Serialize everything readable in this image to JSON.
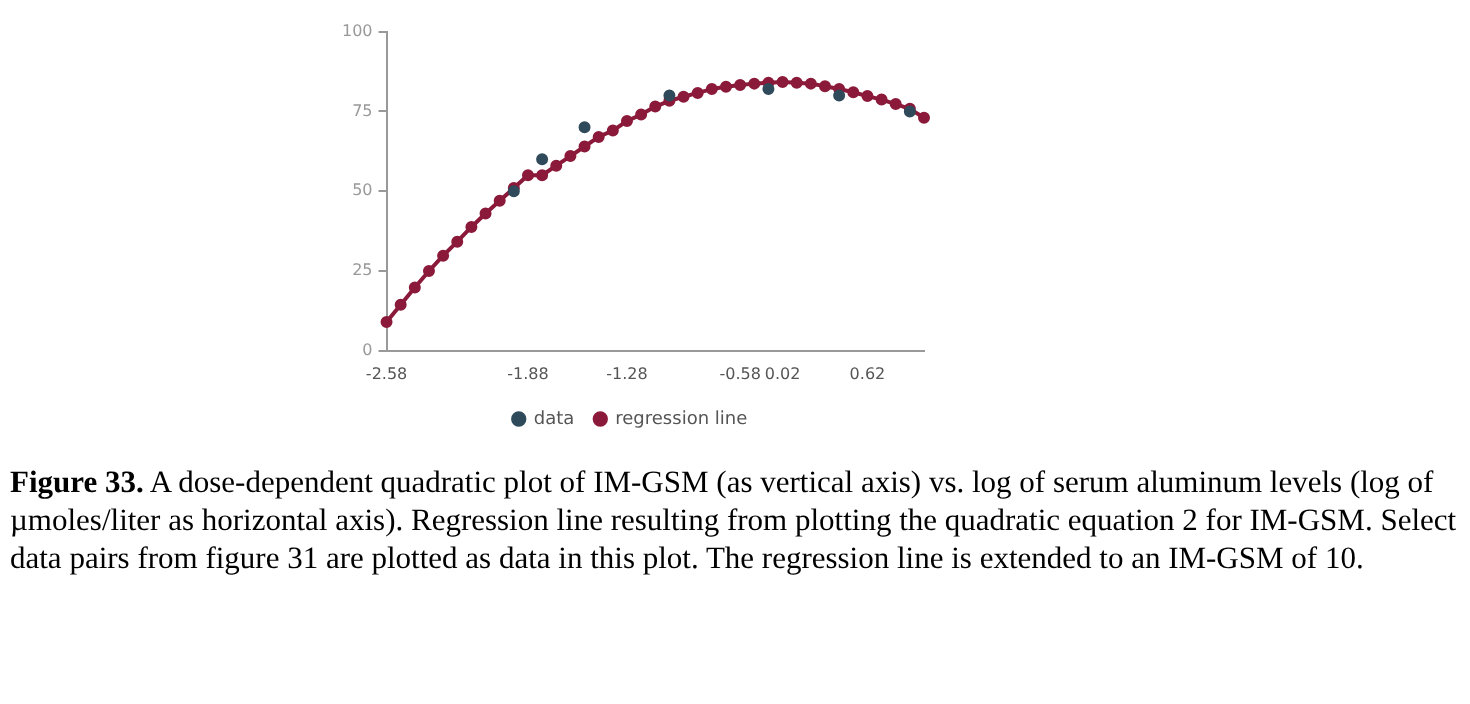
{
  "chart_data": {
    "type": "line",
    "categories": [
      "-2.58",
      null,
      null,
      null,
      null,
      null,
      null,
      null,
      null,
      null,
      "-1.88",
      null,
      null,
      null,
      null,
      null,
      null,
      "-1.28",
      null,
      null,
      null,
      null,
      null,
      null,
      null,
      "-0.58",
      null,
      null,
      "0.02",
      null,
      null,
      null,
      null,
      null,
      "0.62",
      null,
      null,
      null,
      null
    ],
    "series": [
      {
        "name": "regression line",
        "color": "#8b1a3a",
        "marker": "circle",
        "values": [
          9,
          14.4,
          19.8,
          25,
          29.8,
          34.2,
          38.8,
          43,
          47,
          51,
          55,
          55,
          58,
          61,
          64,
          67,
          69,
          72,
          74,
          76.5,
          78.3,
          79.6,
          80.8,
          82,
          82.7,
          83.3,
          83.7,
          84,
          84.2,
          84,
          83.7,
          82.9,
          82,
          81,
          79.8,
          78.7,
          77.3,
          75.8,
          73
        ]
      },
      {
        "name": "data",
        "type": "scatter",
        "color": "#2f4a5a",
        "marker": "circle",
        "values": [
          null,
          null,
          null,
          null,
          null,
          null,
          null,
          null,
          null,
          50,
          null,
          60,
          null,
          null,
          70,
          null,
          null,
          null,
          null,
          null,
          80,
          null,
          null,
          null,
          null,
          null,
          null,
          82,
          null,
          null,
          null,
          null,
          80,
          null,
          null,
          null,
          null,
          75,
          null
        ]
      }
    ],
    "ylim": [
      0,
      100
    ],
    "yticks": [
      0,
      25,
      50,
      75,
      100
    ],
    "grid": false,
    "legend": "bottom",
    "annotations": [
      "Figure 33.",
      "A dose-dependent quadratic plot of IM-GSM (as vertical axis) vs. log of serum aluminum levels (log of µmoles/liter as horizontal axis). Regression line resulting from plotting the quadratic equation 2 for IM-GSM. Select data pairs from figure 31 are plotted as data in this plot. The regression line is extended to an IM-GSM of 10."
    ]
  }
}
